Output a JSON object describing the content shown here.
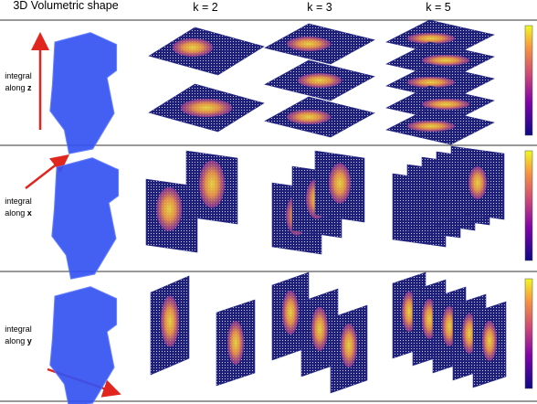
{
  "header": {
    "columns": [
      "3D Volumetric shape",
      "k = 2",
      "k = 3",
      "k = 5"
    ]
  },
  "rows": [
    {
      "line1": "integral",
      "line2": "along",
      "axis": "z"
    },
    {
      "line1": "integral",
      "line2": "along",
      "axis": "x"
    },
    {
      "line1": "integral",
      "line2": "along",
      "axis": "y"
    }
  ]
}
